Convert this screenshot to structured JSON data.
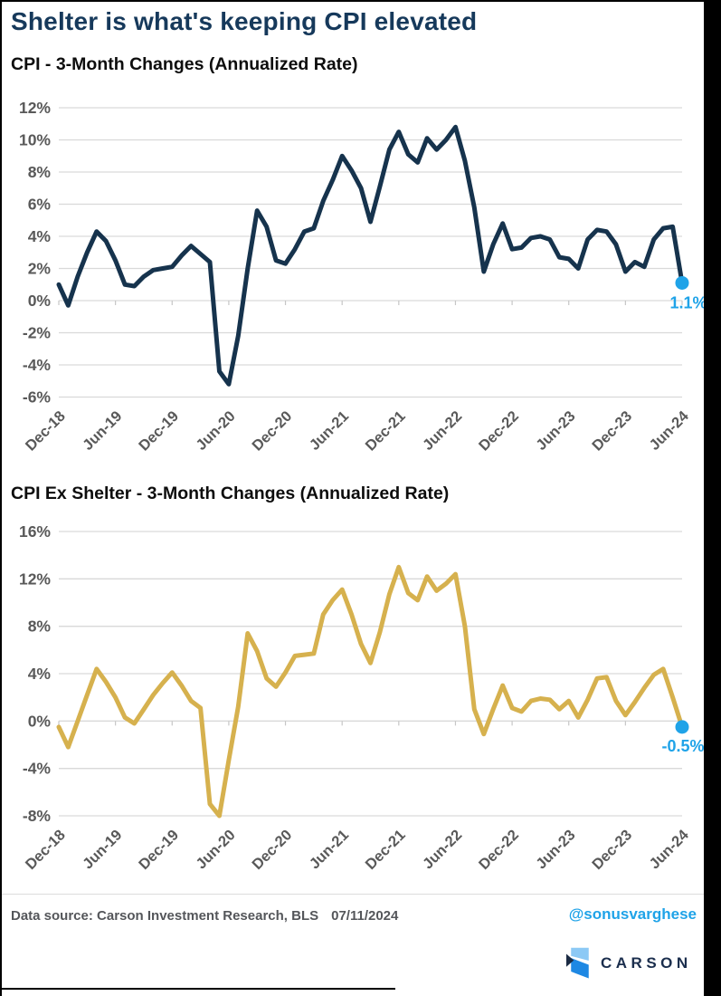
{
  "page": {
    "title": "Shelter is what's keeping CPI elevated"
  },
  "footer": {
    "source": "Data source: Carson Investment Research, BLS",
    "date": "07/11/2024",
    "handle": "@sonusvarghese",
    "brand": "CARSON"
  },
  "colors": {
    "cpi_line": "#16334d",
    "cpi_ex_shelter_line": "#d6b14e",
    "accent_blue": "#1fa3e8",
    "title_navy": "#16395b",
    "axis_label_gray": "#595959",
    "gridline": "#d9d9d9",
    "tick_gray": "#c6c6c6"
  },
  "chart_data": [
    {
      "type": "line",
      "title": "CPI - 3-Month Changes (Annualized Rate)",
      "series_name": "CPI 3-month % change (annualized)",
      "x_tick_labels": [
        "Dec-18",
        "Jun-19",
        "Dec-19",
        "Jun-20",
        "Dec-20",
        "Jun-21",
        "Dec-21",
        "Jun-22",
        "Dec-22",
        "Jun-23",
        "Dec-23",
        "Jun-24"
      ],
      "tick_interval_months": 6,
      "values": [
        1.0,
        -0.3,
        1.5,
        3.0,
        4.3,
        3.7,
        2.5,
        1.0,
        0.9,
        1.5,
        1.9,
        2.0,
        2.1,
        2.8,
        3.4,
        2.9,
        2.4,
        -4.4,
        -5.2,
        -2.2,
        2.0,
        5.6,
        4.6,
        2.5,
        2.3,
        3.2,
        4.3,
        4.5,
        6.2,
        7.5,
        9.0,
        8.1,
        7.0,
        4.9,
        7.1,
        9.4,
        10.5,
        9.1,
        8.6,
        10.1,
        9.4,
        10.0,
        10.8,
        8.7,
        5.8,
        1.8,
        3.5,
        4.8,
        3.2,
        3.3,
        3.9,
        4.0,
        3.8,
        2.7,
        2.6,
        2.0,
        3.8,
        4.4,
        4.3,
        3.5,
        1.8,
        2.4,
        2.1,
        3.8,
        4.5,
        4.6,
        1.1
      ],
      "ylim": [
        -6,
        12
      ],
      "ytick_step": 2,
      "ytick_suffix": "%",
      "grid": true,
      "legend": false,
      "line_color": "#16334d",
      "end_point": {
        "label": "1.1%",
        "value": 1.1,
        "marker_color": "#1fa3e8"
      }
    },
    {
      "type": "line",
      "title": "CPI Ex Shelter - 3-Month Changes (Annualized Rate)",
      "series_name": "CPI ex shelter 3-month % change (annualized)",
      "x_tick_labels": [
        "Dec-18",
        "Jun-19",
        "Dec-19",
        "Jun-20",
        "Dec-20",
        "Jun-21",
        "Dec-21",
        "Jun-22",
        "Dec-22",
        "Jun-23",
        "Dec-23",
        "Jun-24"
      ],
      "tick_interval_months": 6,
      "values": [
        -0.5,
        -2.2,
        0.0,
        2.2,
        4.4,
        3.3,
        2.0,
        0.3,
        -0.2,
        1.0,
        2.2,
        3.2,
        4.1,
        3.0,
        1.7,
        1.1,
        -7.0,
        -8.0,
        -3.3,
        1.2,
        7.4,
        5.9,
        3.6,
        2.9,
        4.1,
        5.5,
        5.6,
        5.7,
        9.0,
        10.2,
        11.1,
        9.0,
        6.5,
        4.9,
        7.5,
        10.7,
        13.0,
        10.8,
        10.2,
        12.2,
        11.0,
        11.6,
        12.4,
        8.0,
        1.0,
        -1.1,
        1.0,
        3.0,
        1.1,
        0.8,
        1.7,
        1.9,
        1.8,
        1.0,
        1.7,
        0.3,
        1.8,
        3.6,
        3.7,
        1.7,
        0.5,
        1.6,
        2.8,
        3.9,
        4.4,
        2.0,
        -0.5
      ],
      "ylim": [
        -8,
        16
      ],
      "ytick_step": 4,
      "ytick_suffix": "%",
      "grid": true,
      "legend": false,
      "line_color": "#d6b14e",
      "end_point": {
        "label": "-0.5%",
        "value": -0.5,
        "marker_color": "#1fa3e8"
      }
    }
  ]
}
